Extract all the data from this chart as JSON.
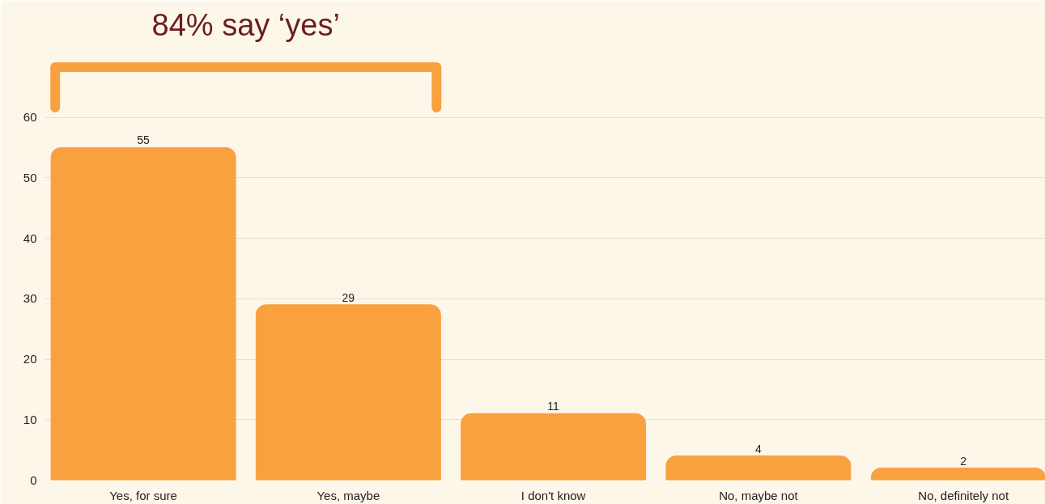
{
  "chart_data": {
    "type": "bar",
    "categories": [
      "Yes, for sure",
      "Yes, maybe",
      "I don't know",
      "No, maybe not",
      "No, definitely not"
    ],
    "values": [
      55,
      29,
      11,
      4,
      2
    ],
    "color": "#f9a03f",
    "ylim": [
      0,
      78
    ],
    "yticks": [
      0,
      10,
      20,
      30,
      40,
      50,
      60
    ],
    "grid": "y",
    "data_labels": true,
    "annotations": [
      "84% say ‘yes’"
    ]
  }
}
